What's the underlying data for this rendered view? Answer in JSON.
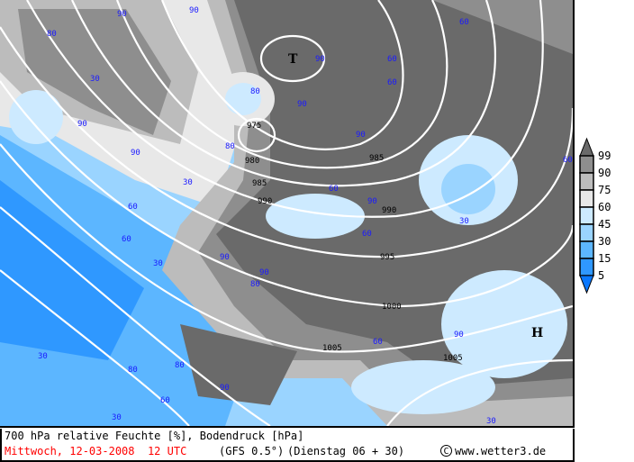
{
  "title": "700 hPa relative Feuchte [%], Bodendruck [hPa]",
  "valid_time": "Mittwoch, 12-03-2008  12 UTC",
  "model": "(GFS 0.5°)",
  "run": "(Dienstag 06 + 30)",
  "copyright": "www.wetter3.de",
  "legend": {
    "labels": [
      "99",
      "90",
      "75",
      "60",
      "45",
      "30",
      "15",
      "5"
    ],
    "colors": [
      "#6a6a6a",
      "#8e8e8e",
      "#bcbcbc",
      "#e8e8e8",
      "#cdeaff",
      "#9ad4ff",
      "#5cb6ff",
      "#2f98ff",
      "#0a78ff"
    ]
  },
  "pressure_centers": [
    {
      "type": "low",
      "symbol": "T"
    },
    {
      "type": "high",
      "symbol": "H"
    }
  ],
  "isobar_labels": [
    "975",
    "980",
    "985",
    "990",
    "985",
    "990",
    "995",
    "1000",
    "1005",
    "1005"
  ],
  "humidity_labels": [
    "90",
    "90",
    "80",
    "90",
    "60",
    "30",
    "80",
    "60",
    "90",
    "90",
    "90",
    "60",
    "80",
    "90",
    "60",
    "60",
    "30",
    "90",
    "60",
    "30",
    "60",
    "90",
    "80",
    "90",
    "30",
    "80",
    "60",
    "90",
    "80",
    "30",
    "30",
    "90",
    "60",
    "60",
    "30"
  ]
}
